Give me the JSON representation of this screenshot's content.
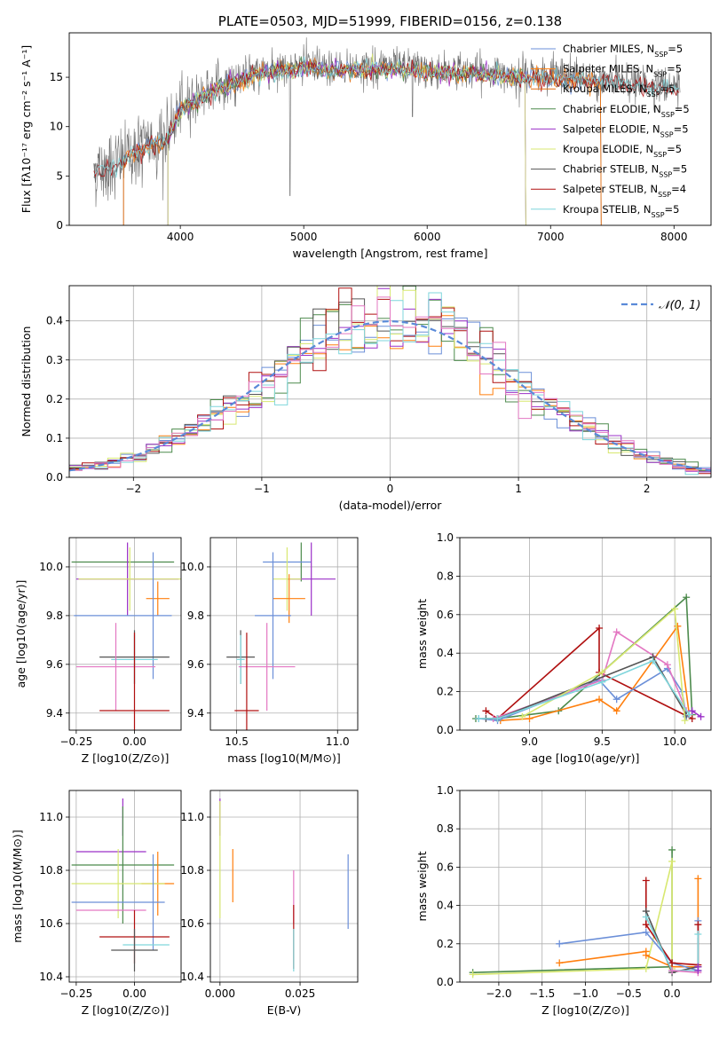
{
  "colors": {
    "Chabrier MILES": "#6b8fd8",
    "Salpeter MILES": "#ff7f0e",
    "Kroupa MILES": "#e06e12",
    "Chabrier ELODIE": "#4c8a4c",
    "Salpeter ELODIE": "#9b30c8",
    "Kroupa ELODIE": "#d8e870",
    "Chabrier STELIB": "#555555",
    "Salpeter STELIB": "#b01010",
    "Kroupa STELIB": "#7fd6dc",
    "pink": "#e377c2",
    "gaussian": "#5a8ad8"
  },
  "chart_data": [
    {
      "id": "spectrum",
      "type": "line",
      "title": "PLATE=0503, MJD=51999, FIBERID=0156, z=0.138",
      "xlabel": "wavelength [Angstrom, rest frame]",
      "ylabel": "Flux [fλ10⁻¹⁷ erg cm⁻² s⁻¹ A⁻¹]",
      "xlim": [
        3100,
        8300
      ],
      "ylim": [
        0,
        19.5
      ],
      "xticks": [
        4000,
        5000,
        6000,
        7000,
        8000
      ],
      "yticks": [
        0,
        5,
        10,
        15
      ],
      "grid": false,
      "legend_position": "right",
      "legend": [
        "Chabrier MILES, NSSP=5",
        "Salpeter MILES, NSSP=5",
        "Kroupa MILES, NSSP=5",
        "Chabrier ELODIE, NSSP=5",
        "Salpeter ELODIE, NSSP=5",
        "Kroupa ELODIE, NSSP=5",
        "Chabrier STELIB, NSSP=5",
        "Salpeter STELIB, NSSP=4",
        "Kroupa STELIB, NSSP=5"
      ],
      "continuum": {
        "x": [
          3300,
          3500,
          3700,
          3900,
          4000,
          4200,
          4400,
          4600,
          4800,
          5000,
          5200,
          5400,
          5600,
          5800,
          6000,
          6200,
          6400,
          6600,
          6800,
          7000,
          7200,
          7400,
          7600,
          7800,
          8050
        ],
        "y": [
          5.5,
          6.5,
          8.0,
          9.0,
          12.0,
          13.5,
          14.5,
          15.5,
          16.0,
          16.2,
          16.0,
          16.0,
          16.1,
          16.0,
          15.8,
          15.7,
          15.6,
          15.4,
          15.3,
          15.2,
          15.0,
          14.8,
          14.5,
          14.2,
          14.0
        ]
      }
    },
    {
      "id": "residuals",
      "type": "histogram",
      "xlabel": "(data-model)/error",
      "ylabel": "Normed distribution",
      "xlim": [
        -2.5,
        2.5
      ],
      "ylim": [
        0,
        0.49
      ],
      "xticks": [
        -2,
        -1,
        0,
        1,
        2
      ],
      "yticks": [
        0.0,
        0.1,
        0.2,
        0.3,
        0.4
      ],
      "grid": true,
      "legend_position": "top-right",
      "legend": [
        "𝒩(0, 1)"
      ],
      "bin_width": 0.1
    },
    {
      "id": "age-vs-Z",
      "type": "errorbar",
      "xlabel": "Z [log10(Z/Z⊙)]",
      "ylabel": "age  [log10(age/yr)]",
      "xlim": [
        -0.28,
        0.2
      ],
      "ylim": [
        9.33,
        10.12
      ],
      "xticks": [
        -0.25,
        0.0,
        0.25
      ],
      "yticks": [
        9.4,
        9.6,
        9.8,
        10.0
      ],
      "grid": true,
      "points": [
        {
          "x": -0.05,
          "y": 10.02,
          "xerr": 0.22,
          "yerr": 0.0,
          "series": "Chabrier ELODIE"
        },
        {
          "x": -0.03,
          "y": 9.95,
          "xerr": 0.22,
          "yerr": 0.15,
          "series": "Salpeter ELODIE"
        },
        {
          "x": -0.02,
          "y": 9.95,
          "xerr": 0.22,
          "yerr": 0.13,
          "series": "Kroupa ELODIE"
        },
        {
          "x": 0.1,
          "y": 9.87,
          "xerr": 0.05,
          "yerr": 0.07,
          "series": "Salpeter MILES"
        },
        {
          "x": 0.08,
          "y": 9.8,
          "xerr": 0.0,
          "yerr": 0.26,
          "series": "Chabrier MILES"
        },
        {
          "x": -0.05,
          "y": 9.8,
          "xerr": 0.21,
          "yerr": 0.0,
          "series": "Chabrier MILES"
        },
        {
          "x": 0.0,
          "y": 9.63,
          "xerr": 0.15,
          "yerr": 0.11,
          "series": "Chabrier STELIB"
        },
        {
          "x": 0.0,
          "y": 9.62,
          "xerr": 0.1,
          "yerr": 0.1,
          "series": "Kroupa STELIB"
        },
        {
          "x": -0.08,
          "y": 9.59,
          "xerr": 0.17,
          "yerr": 0.18,
          "series": "pink"
        },
        {
          "x": 0.0,
          "y": 9.41,
          "xerr": 0.15,
          "yerr": 0.32,
          "series": "Salpeter STELIB"
        }
      ]
    },
    {
      "id": "age-vs-mass",
      "type": "errorbar",
      "xlabel": "mass [log10(M/M⊙)]",
      "xlim": [
        10.37,
        11.1
      ],
      "ylim": [
        9.33,
        10.12
      ],
      "xticks": [
        10.5,
        11.0
      ],
      "yticks": [
        9.4,
        9.6,
        9.8,
        10.0
      ],
      "grid": true,
      "points": [
        {
          "x": 10.82,
          "y": 10.02,
          "xerr": 0.0,
          "yerr": 0.08,
          "series": "Chabrier ELODIE"
        },
        {
          "x": 10.75,
          "y": 10.02,
          "xerr": 0.12,
          "yerr": 0.0,
          "series": "Chabrier MILES"
        },
        {
          "x": 10.87,
          "y": 9.95,
          "xerr": 0.12,
          "yerr": 0.15,
          "series": "Salpeter ELODIE"
        },
        {
          "x": 10.75,
          "y": 9.95,
          "xerr": 0.07,
          "yerr": 0.13,
          "series": "Kroupa ELODIE"
        },
        {
          "x": 10.76,
          "y": 9.87,
          "xerr": 0.08,
          "yerr": 0.1,
          "series": "Salpeter MILES"
        },
        {
          "x": 10.68,
          "y": 9.8,
          "xerr": 0.09,
          "yerr": 0.26,
          "series": "Chabrier MILES"
        },
        {
          "x": 10.52,
          "y": 9.63,
          "xerr": 0.07,
          "yerr": 0.11,
          "series": "Chabrier STELIB"
        },
        {
          "x": 10.52,
          "y": 9.62,
          "xerr": 0.02,
          "yerr": 0.1,
          "series": "Kroupa STELIB"
        },
        {
          "x": 10.65,
          "y": 9.59,
          "xerr": 0.14,
          "yerr": 0.18,
          "series": "pink"
        },
        {
          "x": 10.55,
          "y": 9.41,
          "xerr": 0.06,
          "yerr": 0.32,
          "series": "Salpeter STELIB"
        }
      ]
    },
    {
      "id": "weight-vs-age",
      "type": "line",
      "xlabel": "age  [log10(age/yr)]",
      "ylabel": "mass weight",
      "xlim": [
        8.52,
        10.25
      ],
      "ylim": [
        0.0,
        1.0
      ],
      "xticks": [
        9.0,
        9.5,
        10.0
      ],
      "yticks": [
        0.0,
        0.2,
        0.4,
        0.6,
        0.8,
        1.0
      ],
      "grid": true,
      "series": [
        {
          "name": "Chabrier ELODIE",
          "x": [
            8.63,
            8.78,
            9.2,
            10.08,
            10.12
          ],
          "y": [
            0.06,
            0.06,
            0.1,
            0.69,
            0.08
          ]
        },
        {
          "name": "Salpeter STELIB",
          "x": [
            8.7,
            8.78,
            9.48,
            9.48,
            10.12
          ],
          "y": [
            0.1,
            0.06,
            0.53,
            0.3,
            0.06
          ]
        },
        {
          "name": "Salpeter MILES",
          "x": [
            8.8,
            9.0,
            9.48,
            9.6,
            10.02,
            10.1
          ],
          "y": [
            0.05,
            0.06,
            0.16,
            0.1,
            0.54,
            0.08
          ]
        },
        {
          "name": "Chabrier MILES",
          "x": [
            8.65,
            8.78,
            9.48,
            9.6,
            9.95,
            10.05,
            10.08
          ],
          "y": [
            0.06,
            0.05,
            0.26,
            0.16,
            0.32,
            0.2,
            0.07
          ]
        },
        {
          "name": "pink",
          "x": [
            8.75,
            9.5,
            9.6,
            9.95,
            10.08
          ],
          "y": [
            0.06,
            0.26,
            0.51,
            0.34,
            0.1
          ]
        },
        {
          "name": "Chabrier STELIB",
          "x": [
            8.7,
            8.78,
            9.85,
            10.08
          ],
          "y": [
            0.06,
            0.06,
            0.38,
            0.08
          ]
        },
        {
          "name": "Kroupa ELODIE",
          "x": [
            8.95,
            9.5,
            10.0,
            10.07
          ],
          "y": [
            0.07,
            0.3,
            0.63,
            0.05
          ]
        },
        {
          "name": "Salpeter ELODIE",
          "x": [
            10.12,
            10.18
          ],
          "y": [
            0.1,
            0.07
          ]
        },
        {
          "name": "Kroupa STELIB",
          "x": [
            8.65,
            8.78,
            9.5,
            9.85,
            10.1
          ],
          "y": [
            0.06,
            0.06,
            0.25,
            0.36,
            0.08
          ]
        }
      ]
    },
    {
      "id": "mass-vs-Z",
      "type": "errorbar",
      "xlabel": "Z [log10(Z/Z⊙)]",
      "ylabel": "mass [log10(M/M⊙)]",
      "xlim": [
        -0.28,
        0.2
      ],
      "ylim": [
        10.38,
        11.1
      ],
      "xticks": [
        -0.25,
        0.0,
        0.25
      ],
      "yticks": [
        10.4,
        10.6,
        10.8,
        11.0
      ],
      "grid": true,
      "points": [
        {
          "x": -0.05,
          "y": 11.0,
          "xerr": 0.0,
          "yerr": 0.07,
          "series": "Salpeter ELODIE"
        },
        {
          "x": -0.1,
          "y": 10.87,
          "xerr": 0.15,
          "yerr": 0.0,
          "series": "Salpeter ELODIE"
        },
        {
          "x": -0.05,
          "y": 10.82,
          "xerr": 0.22,
          "yerr": 0.22,
          "series": "Chabrier ELODIE"
        },
        {
          "x": 0.1,
          "y": 10.75,
          "xerr": 0.07,
          "yerr": 0.12,
          "series": "Salpeter MILES"
        },
        {
          "x": -0.07,
          "y": 10.75,
          "xerr": 0.2,
          "yerr": 0.13,
          "series": "Kroupa ELODIE"
        },
        {
          "x": -0.07,
          "y": 10.68,
          "xerr": 0.2,
          "yerr": 0.0,
          "series": "Chabrier MILES"
        },
        {
          "x": 0.08,
          "y": 10.68,
          "xerr": 0.0,
          "yerr": 0.18,
          "series": "Chabrier MILES"
        },
        {
          "x": -0.1,
          "y": 10.65,
          "xerr": 0.15,
          "yerr": 0.0,
          "series": "pink"
        },
        {
          "x": 0.0,
          "y": 10.55,
          "xerr": 0.15,
          "yerr": 0.1,
          "series": "Salpeter STELIB"
        },
        {
          "x": 0.05,
          "y": 10.52,
          "xerr": 0.1,
          "yerr": 0.0,
          "series": "Kroupa STELIB"
        },
        {
          "x": 0.0,
          "y": 10.5,
          "xerr": 0.1,
          "yerr": 0.08,
          "series": "Chabrier STELIB"
        }
      ]
    },
    {
      "id": "mass-vs-EBV",
      "type": "errorbar",
      "xlabel": "E(B-V)",
      "xlim": [
        -0.003,
        0.043
      ],
      "ylim": [
        10.38,
        11.1
      ],
      "xticks": [
        0.0,
        0.025
      ],
      "yticks": [
        10.4,
        10.6,
        10.8,
        11.0
      ],
      "grid": true,
      "points": [
        {
          "x": 0.0,
          "y": 11.0,
          "xerr": 0.0,
          "yerr": 0.07,
          "series": "Salpeter ELODIE"
        },
        {
          "x": 0.0,
          "y": 10.84,
          "xerr": 0.0,
          "yerr": 0.22,
          "series": "Kroupa ELODIE"
        },
        {
          "x": 0.004,
          "y": 10.78,
          "xerr": 0.0,
          "yerr": 0.1,
          "series": "Salpeter MILES"
        },
        {
          "x": 0.023,
          "y": 10.7,
          "xerr": 0.0,
          "yerr": 0.1,
          "series": "pink"
        },
        {
          "x": 0.023,
          "y": 10.55,
          "xerr": 0.0,
          "yerr": 0.12,
          "series": "Salpeter STELIB"
        },
        {
          "x": 0.023,
          "y": 10.5,
          "xerr": 0.0,
          "yerr": 0.08,
          "series": "Kroupa STELIB"
        },
        {
          "x": 0.04,
          "y": 10.72,
          "xerr": 0.0,
          "yerr": 0.14,
          "series": "Chabrier MILES"
        }
      ]
    },
    {
      "id": "weight-vs-Z",
      "type": "line",
      "xlabel": "Z [log10(Z/Z⊙)]",
      "ylabel": "mass weight",
      "xlim": [
        -2.45,
        0.45
      ],
      "ylim": [
        0.0,
        1.0
      ],
      "xticks": [
        -2.0,
        -1.5,
        -1.0,
        -0.5,
        0.0
      ],
      "yticks": [
        0.0,
        0.2,
        0.4,
        0.6,
        0.8,
        1.0
      ],
      "grid": true,
      "series": [
        {
          "name": "Chabrier ELODIE",
          "x": [
            -2.3,
            0.0,
            0.0
          ],
          "y": [
            0.05,
            0.08,
            0.69
          ]
        },
        {
          "name": "Kroupa ELODIE",
          "x": [
            -2.3,
            -0.3,
            0.0,
            0.0
          ],
          "y": [
            0.04,
            0.07,
            0.63,
            0.07
          ]
        },
        {
          "name": "Salpeter MILES",
          "x": [
            -1.3,
            -0.3,
            -0.3,
            0.0,
            0.3,
            0.3
          ],
          "y": [
            0.1,
            0.16,
            0.14,
            0.08,
            0.08,
            0.54
          ]
        },
        {
          "name": "Chabrier MILES",
          "x": [
            -1.3,
            -0.3,
            0.0,
            0.3,
            0.3
          ],
          "y": [
            0.2,
            0.26,
            0.1,
            0.06,
            0.32
          ]
        },
        {
          "name": "Salpeter STELIB",
          "x": [
            -0.3,
            -0.3,
            0.0,
            0.3,
            0.3
          ],
          "y": [
            0.53,
            0.3,
            0.1,
            0.09,
            0.3
          ]
        },
        {
          "name": "Chabrier STELIB",
          "x": [
            -0.3,
            0.0,
            0.3
          ],
          "y": [
            0.37,
            0.05,
            0.08
          ]
        },
        {
          "name": "Kroupa STELIB",
          "x": [
            -0.3,
            0.0,
            0.3,
            0.3
          ],
          "y": [
            0.34,
            0.06,
            0.06,
            0.25
          ]
        },
        {
          "name": "pink",
          "x": [
            0.0,
            0.3
          ],
          "y": [
            0.06,
            0.05
          ]
        },
        {
          "name": "Salpeter ELODIE",
          "x": [
            0.3,
            0.3
          ],
          "y": [
            0.08,
            0.06
          ]
        }
      ]
    }
  ]
}
